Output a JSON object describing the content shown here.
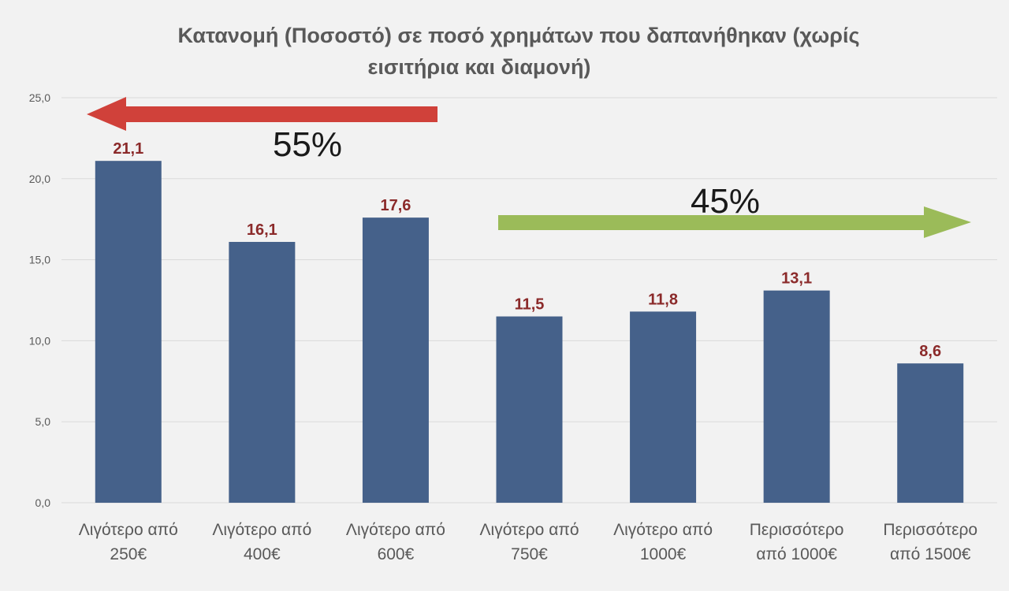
{
  "chart_data": {
    "type": "bar",
    "title_lines": [
      "Κατανομή (Ποσοστό) σε ποσό χρημάτων που δαπανήθηκαν (χωρίς",
      "εισιτήρια και διαμονή)"
    ],
    "categories": [
      [
        "Λιγότερο από",
        "250€"
      ],
      [
        "Λιγότερο από",
        "400€"
      ],
      [
        "Λιγότερο από",
        "600€"
      ],
      [
        "Λιγότερο από",
        "750€"
      ],
      [
        "Λιγότερο από",
        "1000€"
      ],
      [
        "Περισσότερο",
        "από 1000€"
      ],
      [
        "Περισσότερο",
        "από 1500€"
      ]
    ],
    "values": [
      21.1,
      16.1,
      17.6,
      11.5,
      11.8,
      13.1,
      8.6
    ],
    "value_labels": [
      "21,1",
      "16,1",
      "17,6",
      "11,5",
      "11,8",
      "13,1",
      "8,6"
    ],
    "ylim": [
      0,
      25
    ],
    "yticks": [
      0,
      5,
      10,
      15,
      20,
      25
    ],
    "ytick_labels": [
      "0,0",
      "5,0",
      "10,0",
      "15,0",
      "20,0",
      "25,0"
    ],
    "grid": true,
    "bar_color": "#45618a",
    "value_label_color": "#8b2a2a",
    "annotations": [
      {
        "text": "55%",
        "arrow": "left",
        "color": "#d0413a",
        "spans_categories": [
          0,
          2
        ]
      },
      {
        "text": "45%",
        "arrow": "right",
        "color": "#9bbb59",
        "spans_categories": [
          3,
          6
        ]
      }
    ]
  }
}
